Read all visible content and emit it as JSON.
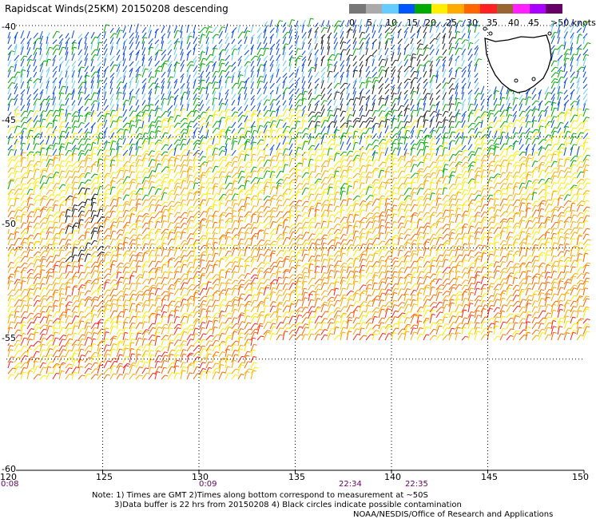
{
  "title": "Rapidscat Winds(25KM) 20150208 descending",
  "colorbar": {
    "labels": [
      "0",
      "5",
      "10",
      "15",
      "20",
      "25",
      "30",
      "35",
      "40",
      "45",
      ">50 knots"
    ],
    "colors": [
      "#777777",
      "#aaaaaa",
      "#66ccff",
      "#0055ff",
      "#00aa00",
      "#ffee00",
      "#ffaa00",
      "#ff6600",
      "#ff2222",
      "#996633",
      "#ff22ff",
      "#aa00ff",
      "#660066"
    ]
  },
  "axes": {
    "lat_labels": [
      "-40",
      "-45",
      "-50",
      "-55",
      "-60"
    ],
    "lon_labels": [
      "120",
      "125",
      "130",
      "135",
      "140",
      "145",
      "150"
    ],
    "lat_range": [
      -60,
      -40
    ],
    "lon_range": [
      120,
      150
    ]
  },
  "time_labels": [
    "0:08",
    "0:09",
    "22:34",
    "22:35"
  ],
  "notes": {
    "line1": "Note:  1) Times are GMT  2)Times along bottom correspond to measurement at ~50S",
    "line2": "3)Data buffer is 22 hrs from 20150208  4) Black circles indicate possible contamination",
    "line3": "NOAA/NESDIS/Office of Research and Applications"
  },
  "map": {
    "land_label": "",
    "wind_field_colors": {
      "north_band": "#0055ff",
      "mid_band": "#ff2222",
      "south_band": "#ffee00",
      "contaminated": "#000000"
    }
  }
}
